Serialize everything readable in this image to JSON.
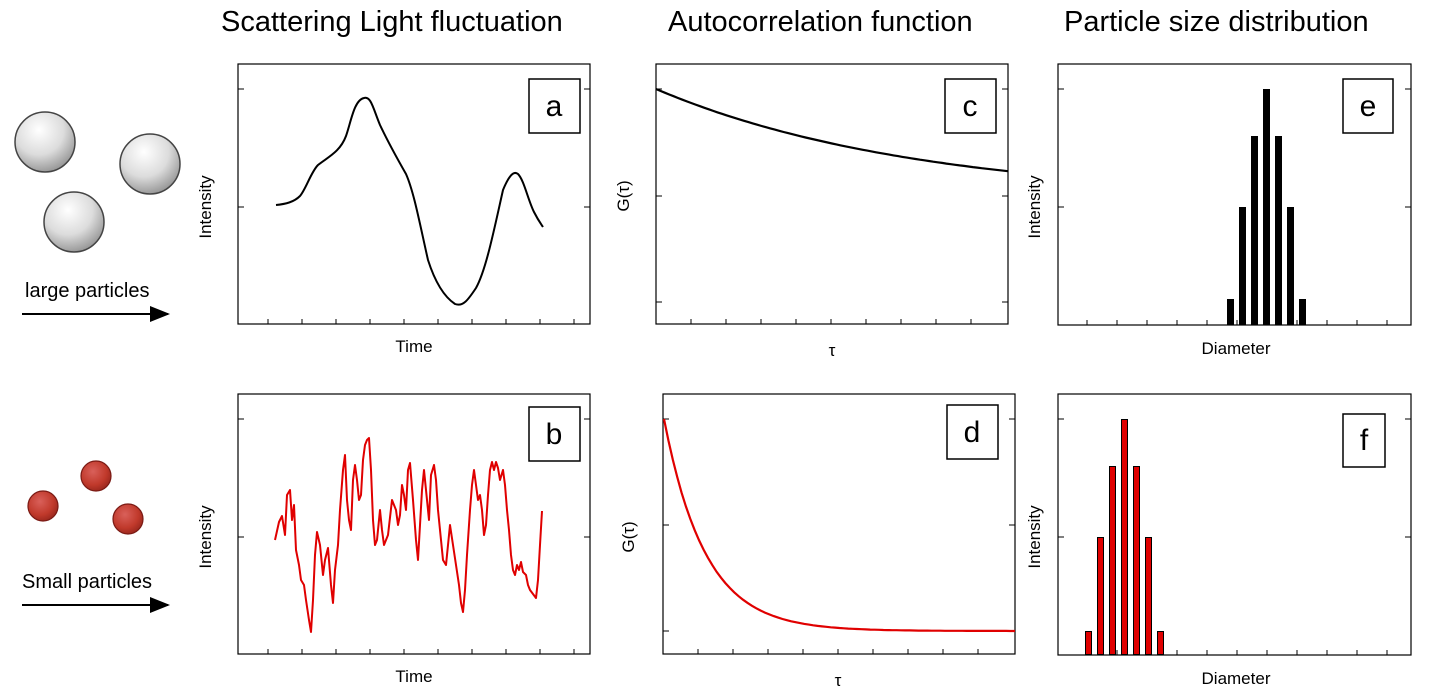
{
  "titles": {
    "scatter": "Scattering Light fluctuation",
    "acf": "Autocorrelation function",
    "psd": "Particle size distribution"
  },
  "rows": {
    "large": {
      "label": "large particles",
      "particle_color": "#c9c9c9",
      "particle_stroke": "#444444"
    },
    "small": {
      "label": "Small particles",
      "particle_color": "#c0392b",
      "particle_stroke": "#7a1a14"
    }
  },
  "colors": {
    "large_series": "#000000",
    "small_series": "#e00000"
  },
  "panels": {
    "a": {
      "label": "a",
      "xlabel": "Time",
      "ylabel": "Intensity"
    },
    "b": {
      "label": "b",
      "xlabel": "Time",
      "ylabel": "Intensity"
    },
    "c": {
      "label": "c",
      "xlabel": "τ",
      "ylabel": "G(τ)"
    },
    "d": {
      "label": "d",
      "xlabel": "τ",
      "ylabel": "G(τ)"
    },
    "e": {
      "label": "e",
      "xlabel": "Diameter",
      "ylabel": "Intensity"
    },
    "f": {
      "label": "f",
      "xlabel": "Diameter",
      "ylabel": "Intensity"
    }
  }
}
